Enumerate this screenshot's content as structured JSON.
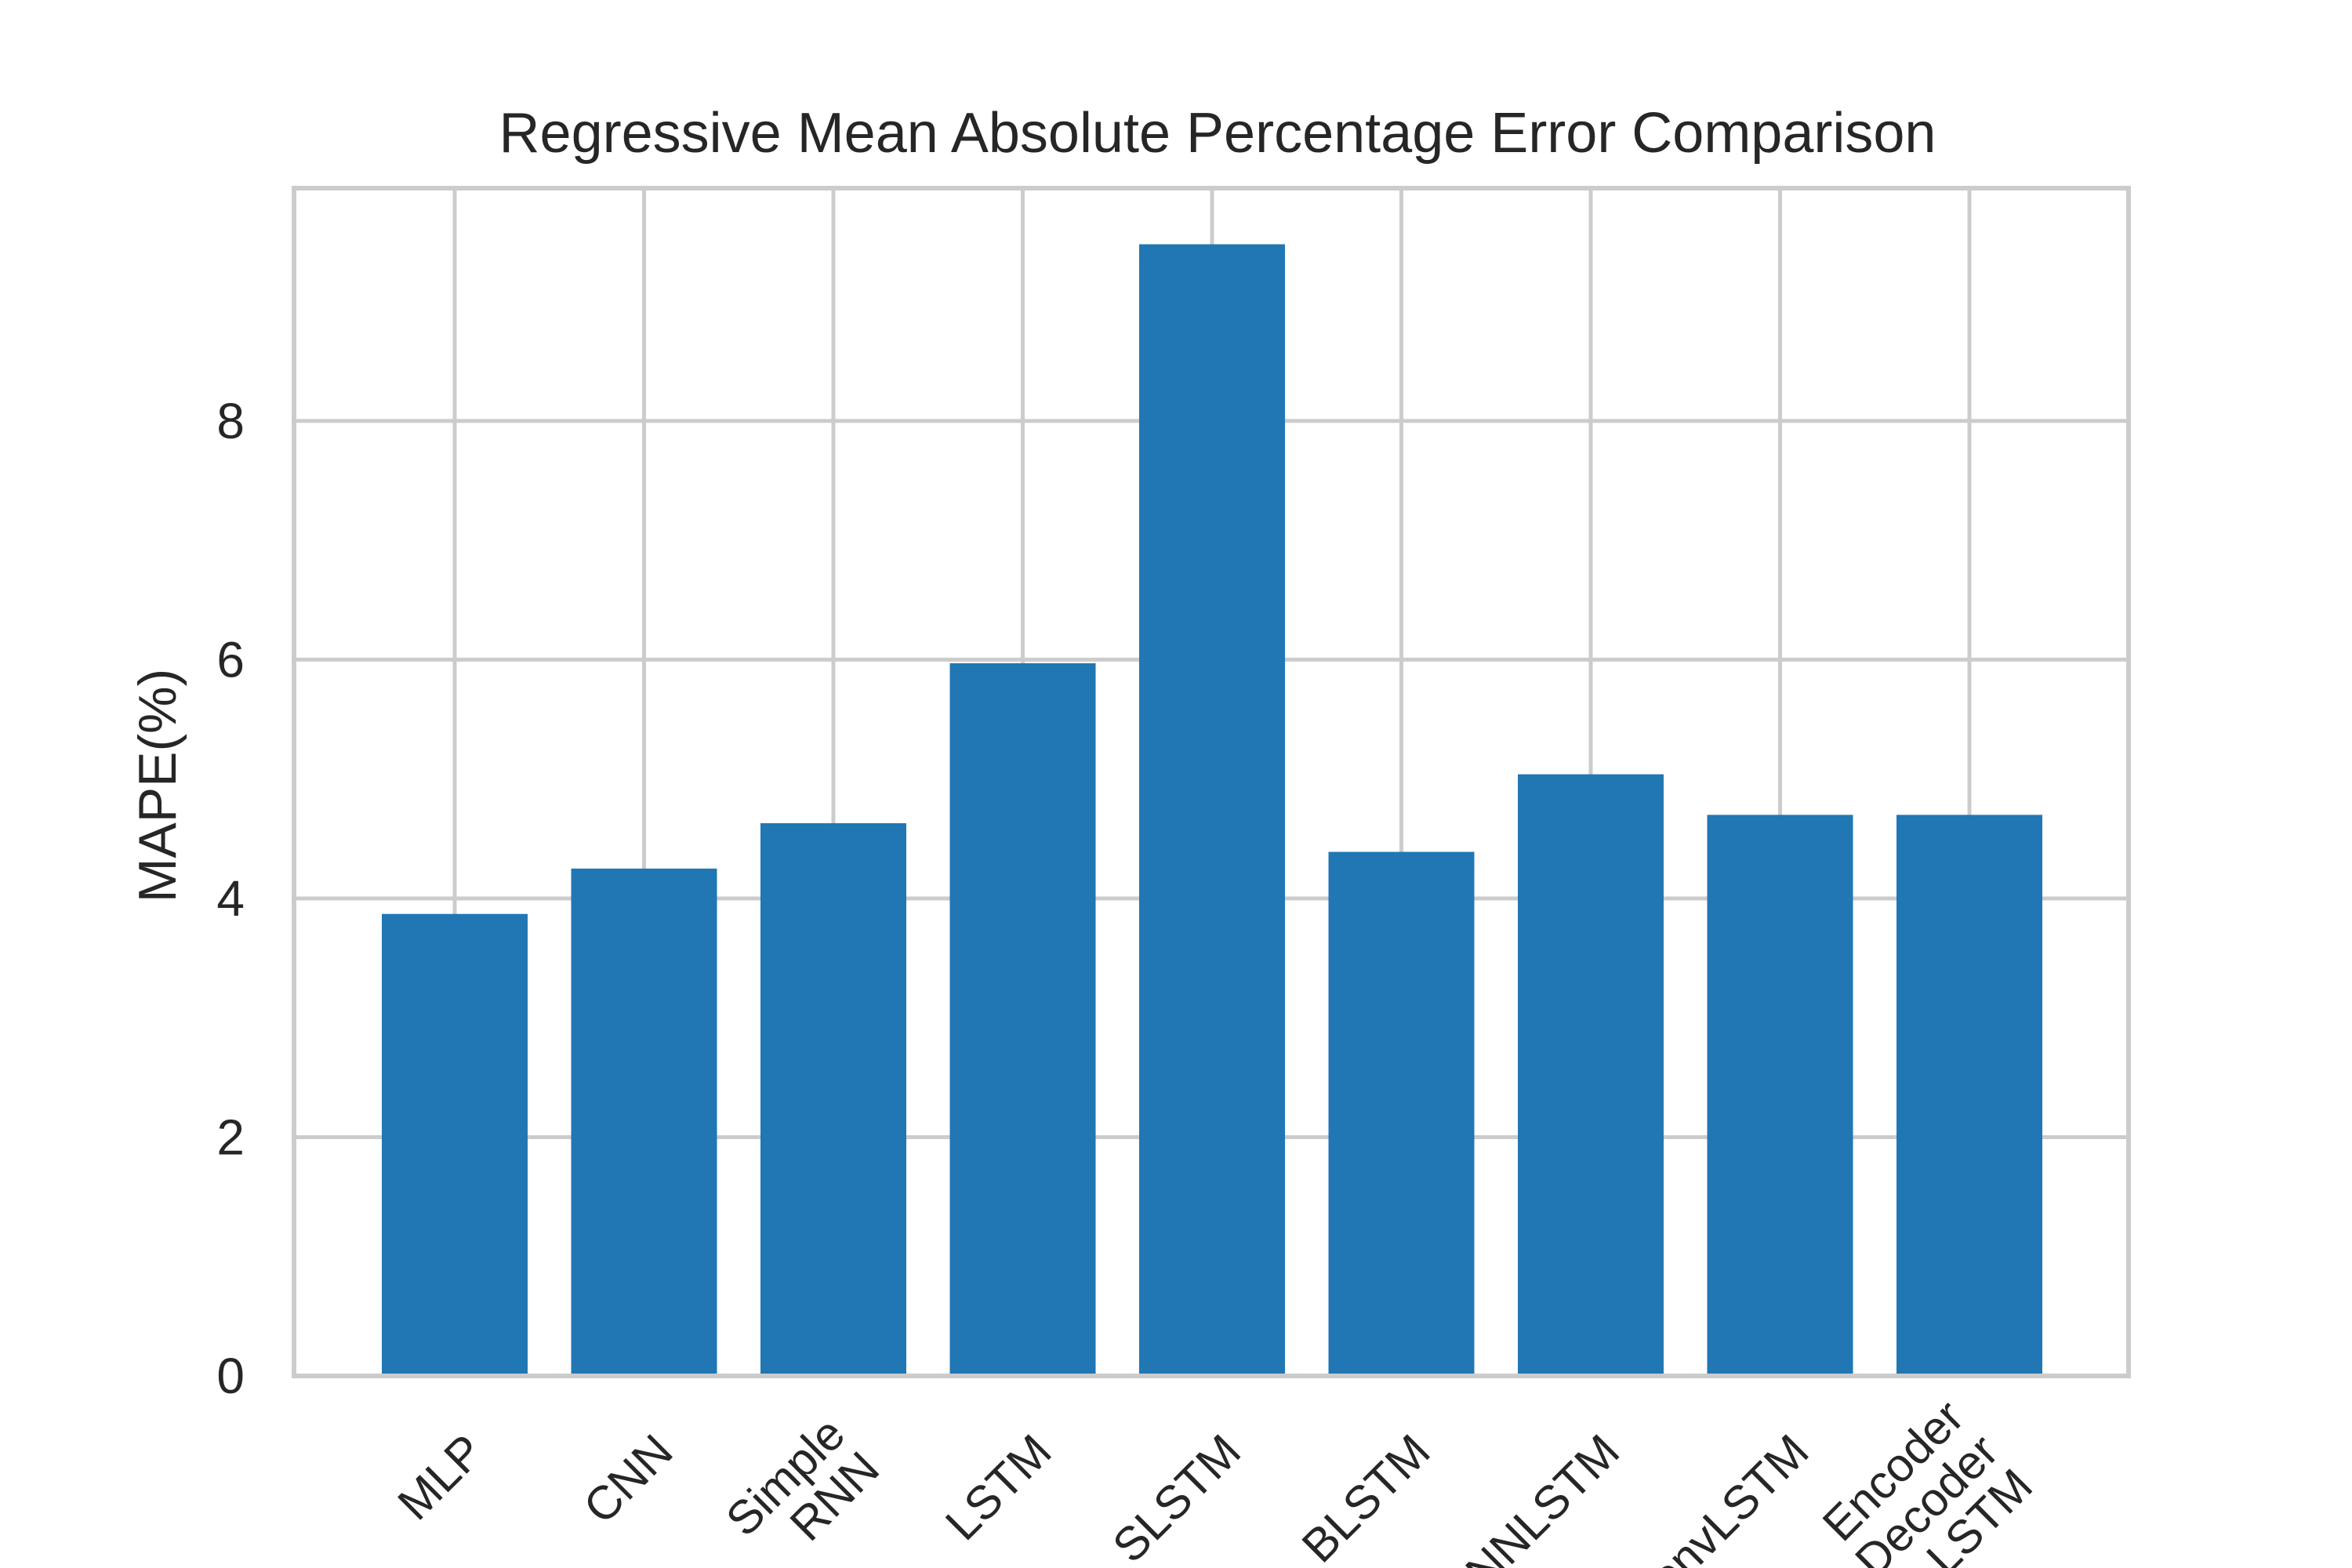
{
  "chart_data": {
    "type": "bar",
    "title": "Regressive Mean Absolute Percentage Error Comparison",
    "xlabel": "",
    "ylabel": "MAPE(%)",
    "categories": [
      "MLP",
      "CNN",
      "Simple\nRNN",
      "LSTM",
      "SLSTM",
      "BLSTM",
      "CNNLSTM",
      "ConvLSTM",
      "Encoder\nDecoder\nLSTM"
    ],
    "values": [
      3.87,
      4.25,
      4.63,
      5.97,
      9.48,
      4.39,
      5.04,
      4.7,
      4.7
    ],
    "ylim": [
      0,
      9.95
    ],
    "yticks": [
      0,
      2,
      4,
      6,
      8
    ],
    "grid": true,
    "bar_color": "#2077b4"
  }
}
